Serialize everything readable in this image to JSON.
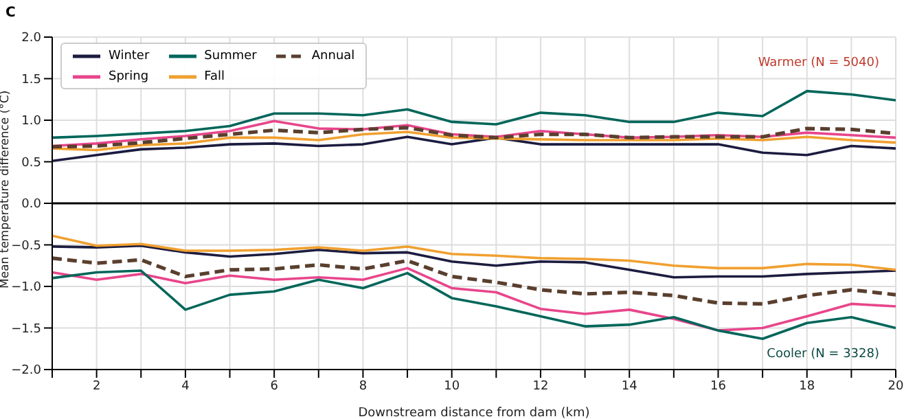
{
  "chart_data": {
    "type": "line",
    "title": "C",
    "xlabel": "Downstream distance from dam (km)",
    "ylabel": "Mean temperature difference (°C)",
    "annotations": [
      "Warmer (N = 5040)",
      "Cooler (N = 3328)"
    ],
    "x": [
      1,
      2,
      3,
      4,
      5,
      6,
      7,
      8,
      9,
      10,
      11,
      12,
      13,
      14,
      15,
      16,
      17,
      18,
      19,
      20
    ],
    "series": [
      {
        "name": "Winter",
        "color": "#1c1c40",
        "values": [
          0.51,
          0.58,
          0.65,
          0.67,
          0.71,
          0.72,
          0.69,
          0.71,
          0.8,
          0.71,
          0.79,
          0.71,
          0.71,
          0.71,
          0.71,
          0.71,
          0.61,
          0.58,
          0.69,
          0.66
        ]
      },
      {
        "name": "Spring",
        "color": "#e8458b",
        "values": [
          0.69,
          0.72,
          0.77,
          0.81,
          0.87,
          0.99,
          0.9,
          0.89,
          0.94,
          0.83,
          0.8,
          0.87,
          0.83,
          0.79,
          0.8,
          0.82,
          0.8,
          0.85,
          0.82,
          0.79
        ]
      },
      {
        "name": "Summer",
        "color": "#00665a",
        "values": [
          0.79,
          0.81,
          0.84,
          0.87,
          0.93,
          1.08,
          1.08,
          1.06,
          1.13,
          0.98,
          0.95,
          1.09,
          1.06,
          0.98,
          0.98,
          1.09,
          1.05,
          1.35,
          1.31,
          1.24
        ]
      },
      {
        "name": "Fall",
        "color": "#f0a030",
        "values": [
          0.66,
          0.64,
          0.7,
          0.72,
          0.79,
          0.79,
          0.76,
          0.83,
          0.86,
          0.79,
          0.78,
          0.77,
          0.76,
          0.76,
          0.76,
          0.78,
          0.76,
          0.8,
          0.76,
          0.73
        ]
      },
      {
        "name": "Annual",
        "color": "#5a3f2e",
        "line_style": "dashed",
        "values": [
          0.68,
          0.69,
          0.73,
          0.78,
          0.83,
          0.88,
          0.85,
          0.89,
          0.91,
          0.82,
          0.79,
          0.83,
          0.83,
          0.79,
          0.8,
          0.8,
          0.8,
          0.9,
          0.89,
          0.84
        ]
      },
      {
        "color": "#1c1c40",
        "values": [
          -0.52,
          -0.53,
          -0.51,
          -0.59,
          -0.64,
          -0.61,
          -0.56,
          -0.6,
          -0.59,
          -0.7,
          -0.75,
          -0.7,
          -0.71,
          -0.8,
          -0.89,
          -0.88,
          -0.88,
          -0.85,
          -0.83,
          -0.81
        ]
      },
      {
        "color": "#e8458b",
        "values": [
          -0.83,
          -0.92,
          -0.85,
          -0.96,
          -0.87,
          -0.92,
          -0.89,
          -0.92,
          -0.78,
          -1.02,
          -1.07,
          -1.27,
          -1.33,
          -1.28,
          -1.39,
          -1.53,
          -1.5,
          -1.36,
          -1.21,
          -1.24
        ]
      },
      {
        "color": "#00665a",
        "values": [
          -0.9,
          -0.83,
          -0.81,
          -1.28,
          -1.1,
          -1.06,
          -0.92,
          -1.02,
          -0.84,
          -1.14,
          -1.24,
          -1.36,
          -1.48,
          -1.46,
          -1.37,
          -1.53,
          -1.63,
          -1.44,
          -1.37,
          -1.5
        ]
      },
      {
        "color": "#f0a030",
        "values": [
          -0.39,
          -0.51,
          -0.49,
          -0.57,
          -0.57,
          -0.56,
          -0.53,
          -0.57,
          -0.52,
          -0.61,
          -0.63,
          -0.66,
          -0.67,
          -0.69,
          -0.75,
          -0.78,
          -0.78,
          -0.73,
          -0.74,
          -0.8
        ]
      },
      {
        "color": "#5a3f2e",
        "line_style": "dashed",
        "values": [
          -0.66,
          -0.72,
          -0.68,
          -0.88,
          -0.8,
          -0.79,
          -0.74,
          -0.79,
          -0.69,
          -0.88,
          -0.95,
          -1.04,
          -1.09,
          -1.07,
          -1.11,
          -1.2,
          -1.21,
          -1.11,
          -1.04,
          -1.1
        ]
      }
    ],
    "xlim": [
      1,
      20
    ],
    "xticks": [
      {
        "value": 1,
        "label": null
      },
      2,
      {
        "value": 3,
        "label": null
      },
      4,
      {
        "value": 5,
        "label": null
      },
      6,
      {
        "value": 7,
        "label": null
      },
      8,
      {
        "value": 9,
        "label": null
      },
      10,
      {
        "value": 11,
        "label": null
      },
      12,
      {
        "value": 13,
        "label": null
      },
      14,
      {
        "value": 15,
        "label": null
      },
      16,
      {
        "value": 17,
        "label": null
      },
      18,
      {
        "value": 19,
        "label": null
      },
      20
    ],
    "ylim": [
      -2,
      2
    ],
    "yticks": [
      {
        "value": -2,
        "label": "−2.0"
      },
      {
        "value": -1.5,
        "label": "−1.5"
      },
      {
        "value": -1,
        "label": "−1.0"
      },
      {
        "value": -0.5,
        "label": "−0.5"
      },
      {
        "value": 0,
        "label": "0.0"
      },
      {
        "value": 0.5,
        "label": "0.5"
      },
      {
        "value": 1,
        "label": "1.0"
      },
      {
        "value": 1.5,
        "label": "1.5"
      },
      {
        "value": 2,
        "label": "2.0"
      }
    ],
    "ref_lines": [
      {
        "axis": "y",
        "value": 0,
        "color": "#000000"
      }
    ],
    "grid": true,
    "legend": "top left",
    "marker": "none",
    "line_style": "solid"
  }
}
